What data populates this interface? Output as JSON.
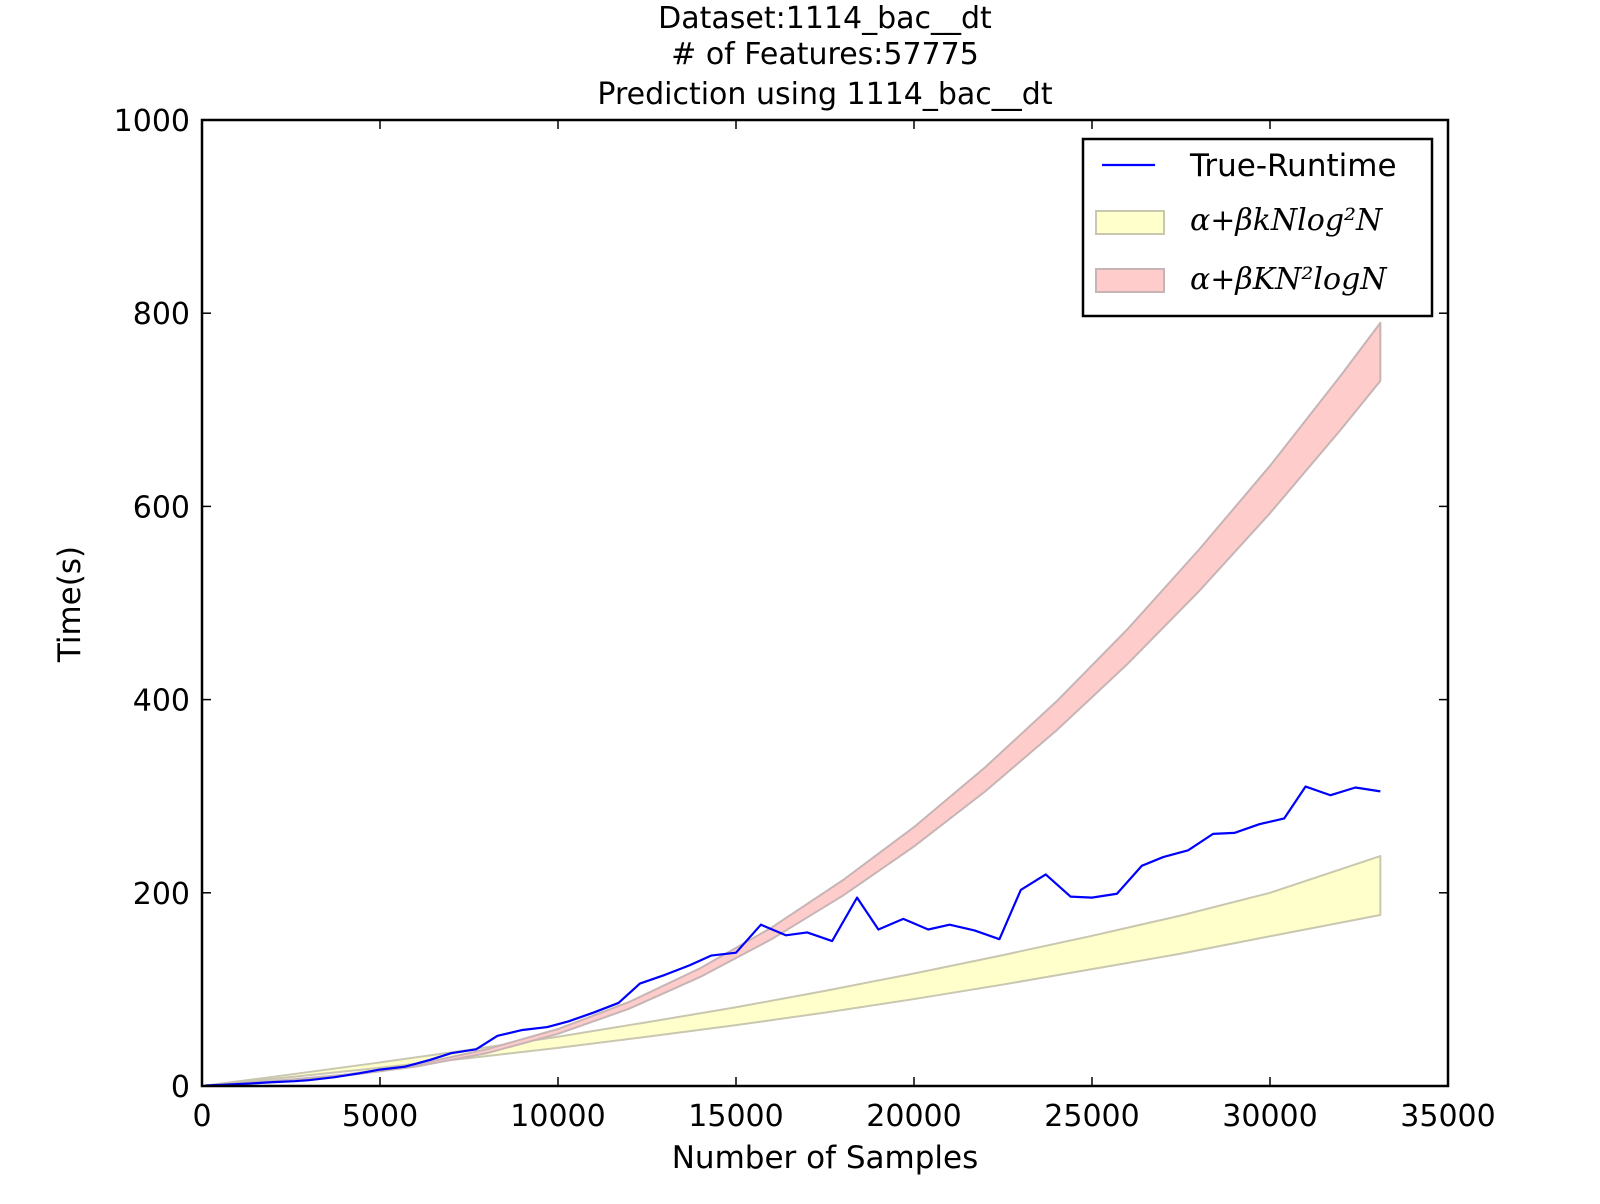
{
  "chart_data": {
    "type": "line",
    "title_lines": [
      "Dataset:1114_bac__dt",
      "# of Features:57775",
      "Prediction using 1114_bac__dt"
    ],
    "xlabel": "Number of Samples",
    "ylabel": "Time(s)",
    "xlim": [
      0,
      35000
    ],
    "ylim": [
      0,
      1000
    ],
    "xticks": [
      0,
      5000,
      10000,
      15000,
      20000,
      25000,
      30000,
      35000
    ],
    "yticks": [
      0,
      200,
      400,
      600,
      800,
      1000
    ],
    "xtick_labels": [
      "0",
      "5000",
      "10000",
      "15000",
      "20000",
      "25000",
      "30000",
      "35000"
    ],
    "ytick_labels": [
      "0",
      "200",
      "400",
      "600",
      "800",
      "1000"
    ],
    "grid": false,
    "legend_position": "top-right",
    "series": [
      {
        "name": "True-Runtime",
        "kind": "line",
        "color": "#0000ff",
        "x": [
          100,
          700,
          1300,
          2000,
          2600,
          3000,
          3700,
          4400,
          5000,
          5700,
          6400,
          7000,
          7700,
          8300,
          9000,
          9700,
          10300,
          11000,
          11700,
          12300,
          13000,
          13700,
          14300,
          15000,
          15700,
          16400,
          17000,
          17700,
          18400,
          19000,
          19700,
          20400,
          21000,
          21700,
          22400,
          23000,
          23700,
          24400,
          25000,
          25700,
          26400,
          27000,
          27700,
          28400,
          29000,
          29700,
          30400,
          31000,
          31700,
          32400,
          33100
        ],
        "y": [
          0.5,
          1.5,
          2.5,
          4,
          5,
          6,
          9,
          13,
          17,
          20,
          27,
          34,
          38,
          52,
          58,
          61,
          67,
          76,
          86,
          106,
          115,
          125,
          135,
          138,
          167,
          156,
          159,
          150,
          195,
          162,
          173,
          162,
          167,
          161,
          152,
          203,
          219,
          196,
          195,
          199,
          228,
          237,
          244,
          261,
          262,
          271,
          277,
          310,
          301,
          309,
          305
        ]
      },
      {
        "name": "α+βkNlog²N",
        "kind": "band",
        "fill_color": "#ffffcc",
        "edge_color": "#c9c7b0",
        "x": [
          0,
          2000,
          5000,
          7500,
          10000,
          12500,
          15000,
          17500,
          20000,
          22500,
          25000,
          27500,
          30000,
          33100
        ],
        "lower": [
          0,
          7.4,
          18.9,
          28.9,
          39.5,
          51,
          63,
          76,
          90,
          105,
          121,
          137,
          155,
          177
        ],
        "upper": [
          0,
          9.5,
          24.4,
          37.4,
          51,
          66,
          81.5,
          98.5,
          116.5,
          135.5,
          155.5,
          176.5,
          200,
          238
        ]
      },
      {
        "name": "α+βKN²logN",
        "kind": "band",
        "fill_color": "#ffcccc",
        "edge_color": "#c7b4b4",
        "x": [
          0,
          2000,
          4000,
          6000,
          8000,
          10000,
          12000,
          14000,
          16000,
          18000,
          20000,
          22000,
          24000,
          26000,
          28000,
          30000,
          32000,
          33100
        ],
        "lower": [
          0,
          4.7,
          10.6,
          20,
          34,
          54,
          80,
          113,
          152,
          197,
          248,
          305,
          368,
          437,
          512,
          593,
          680,
          730
        ],
        "upper": [
          0,
          5.2,
          11.7,
          22,
          38,
          59,
          87,
          122,
          164,
          213,
          268,
          330,
          398,
          473,
          555,
          642,
          736,
          790
        ]
      }
    ],
    "legend_labels": [
      "True-Runtime",
      "α+βkNlog²N",
      "α+βKN²logN"
    ]
  }
}
